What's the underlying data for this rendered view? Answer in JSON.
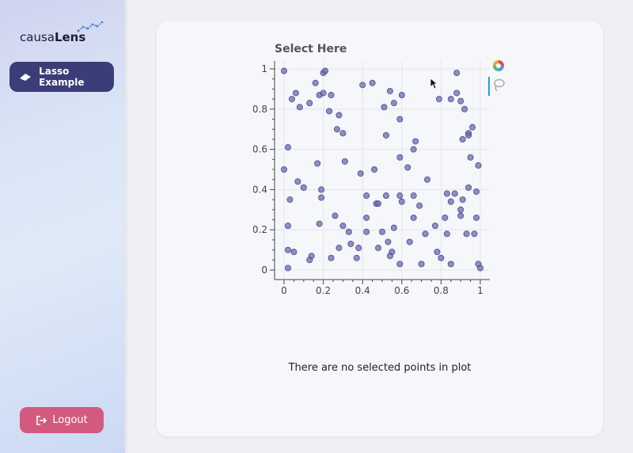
{
  "brand": {
    "name_light": "causa",
    "name_bold": "Lens"
  },
  "sidebar": {
    "nav_item": {
      "label": "Lasso Example",
      "icon": "cap-icon"
    },
    "logout": {
      "label": "Logout",
      "icon": "logout-icon"
    }
  },
  "colors": {
    "sidebar_button": "#3a3d78",
    "logout_button": "#d35a7e",
    "points": "#6b6bb0"
  },
  "plot": {
    "toolbar": [
      "bokeh-logo-icon",
      "lasso-select-icon"
    ]
  },
  "chart_data": {
    "type": "scatter",
    "title": "Select Here",
    "xlabel": "",
    "ylabel": "",
    "xlim": [
      0,
      1
    ],
    "ylim": [
      0,
      1
    ],
    "xticks": [
      "0",
      "0.2",
      "0.4",
      "0.6",
      "0.8",
      "1"
    ],
    "yticks": [
      "0",
      "0.2",
      "0.4",
      "0.6",
      "0.8",
      "1"
    ],
    "grid": true,
    "points": [
      [
        0.0,
        0.99
      ],
      [
        0.04,
        0.85
      ],
      [
        0.06,
        0.88
      ],
      [
        0.08,
        0.81
      ],
      [
        0.13,
        0.83
      ],
      [
        0.16,
        0.93
      ],
      [
        0.18,
        0.87
      ],
      [
        0.2,
        0.98
      ],
      [
        0.21,
        0.99
      ],
      [
        0.2,
        0.88
      ],
      [
        0.23,
        0.79
      ],
      [
        0.24,
        0.87
      ],
      [
        0.28,
        0.77
      ],
      [
        0.27,
        0.7
      ],
      [
        0.3,
        0.68
      ],
      [
        0.4,
        0.92
      ],
      [
        0.45,
        0.93
      ],
      [
        0.51,
        0.81
      ],
      [
        0.54,
        0.89
      ],
      [
        0.56,
        0.83
      ],
      [
        0.6,
        0.87
      ],
      [
        0.59,
        0.75
      ],
      [
        0.52,
        0.67
      ],
      [
        0.59,
        0.56
      ],
      [
        0.66,
        0.6
      ],
      [
        0.67,
        0.64
      ],
      [
        0.63,
        0.51
      ],
      [
        0.79,
        0.85
      ],
      [
        0.85,
        0.85
      ],
      [
        0.88,
        0.98
      ],
      [
        0.88,
        0.88
      ],
      [
        0.9,
        0.84
      ],
      [
        0.92,
        0.8
      ],
      [
        0.96,
        0.71
      ],
      [
        0.94,
        0.68
      ],
      [
        0.94,
        0.67
      ],
      [
        0.91,
        0.65
      ],
      [
        0.95,
        0.56
      ],
      [
        0.99,
        0.52
      ],
      [
        0.0,
        0.5
      ],
      [
        0.02,
        0.61
      ],
      [
        0.07,
        0.44
      ],
      [
        0.1,
        0.41
      ],
      [
        0.17,
        0.53
      ],
      [
        0.19,
        0.4
      ],
      [
        0.19,
        0.36
      ],
      [
        0.03,
        0.35
      ],
      [
        0.31,
        0.54
      ],
      [
        0.39,
        0.48
      ],
      [
        0.46,
        0.5
      ],
      [
        0.42,
        0.37
      ],
      [
        0.47,
        0.33
      ],
      [
        0.48,
        0.33
      ],
      [
        0.52,
        0.37
      ],
      [
        0.59,
        0.37
      ],
      [
        0.6,
        0.34
      ],
      [
        0.66,
        0.37
      ],
      [
        0.66,
        0.26
      ],
      [
        0.69,
        0.32
      ],
      [
        0.73,
        0.45
      ],
      [
        0.83,
        0.38
      ],
      [
        0.85,
        0.34
      ],
      [
        0.87,
        0.38
      ],
      [
        0.91,
        0.35
      ],
      [
        0.94,
        0.41
      ],
      [
        0.98,
        0.39
      ],
      [
        0.9,
        0.3
      ],
      [
        0.9,
        0.27
      ],
      [
        0.82,
        0.26
      ],
      [
        0.98,
        0.26
      ],
      [
        0.42,
        0.26
      ],
      [
        0.26,
        0.27
      ],
      [
        0.18,
        0.23
      ],
      [
        0.02,
        0.22
      ],
      [
        0.3,
        0.22
      ],
      [
        0.33,
        0.19
      ],
      [
        0.42,
        0.19
      ],
      [
        0.5,
        0.19
      ],
      [
        0.56,
        0.21
      ],
      [
        0.64,
        0.14
      ],
      [
        0.72,
        0.18
      ],
      [
        0.77,
        0.22
      ],
      [
        0.83,
        0.18
      ],
      [
        0.93,
        0.18
      ],
      [
        0.97,
        0.18
      ],
      [
        0.02,
        0.1
      ],
      [
        0.05,
        0.09
      ],
      [
        0.14,
        0.07
      ],
      [
        0.13,
        0.05
      ],
      [
        0.24,
        0.06
      ],
      [
        0.28,
        0.11
      ],
      [
        0.34,
        0.13
      ],
      [
        0.38,
        0.11
      ],
      [
        0.37,
        0.06
      ],
      [
        0.48,
        0.11
      ],
      [
        0.53,
        0.14
      ],
      [
        0.55,
        0.09
      ],
      [
        0.54,
        0.07
      ],
      [
        0.59,
        0.03
      ],
      [
        0.78,
        0.09
      ],
      [
        0.8,
        0.06
      ],
      [
        0.85,
        0.03
      ],
      [
        0.99,
        0.03
      ],
      [
        1.0,
        0.01
      ],
      [
        0.7,
        0.03
      ],
      [
        0.02,
        0.01
      ]
    ]
  },
  "status_message": "There are no selected points in plot"
}
